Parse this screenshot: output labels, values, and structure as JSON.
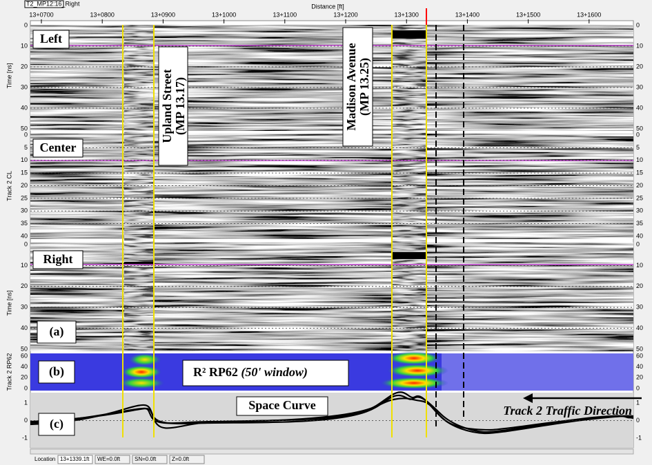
{
  "header": {
    "file": "T2_MP12:16_Right",
    "axis_title": "Distance [ft]",
    "ticks": [
      "13+0700",
      "13+0800",
      "13+0900",
      "13+1000",
      "13+1100",
      "13+1200",
      "13+1300",
      "13+1400",
      "13+1500",
      "13+1600"
    ]
  },
  "panels": [
    {
      "label": "Left",
      "axis_title": "Time [ns]",
      "ticks": [
        "0",
        "10",
        "20",
        "30",
        "40",
        "50"
      ]
    },
    {
      "label": "Center",
      "axis_title": "Track 2 CL",
      "ticks": [
        "0",
        "5",
        "10",
        "15",
        "20",
        "25",
        "30",
        "35",
        "40"
      ]
    },
    {
      "label": "Right",
      "axis_title": "Time [ns]",
      "ticks": [
        "0",
        "10",
        "20",
        "30",
        "40",
        "50"
      ],
      "tag": "(a)"
    }
  ],
  "r2_panel": {
    "axis_title": "Track 2 RP62",
    "ticks": [
      "60",
      "40",
      "20",
      "0"
    ],
    "label": "R² RP62",
    "label_italic": "(50' window)",
    "tag": "(b)"
  },
  "curve_panel": {
    "ticks": [
      "1",
      "0",
      "-1"
    ],
    "label": "Space Curve",
    "direction": "Track 2 Traffic Direction",
    "tag": "(c)"
  },
  "annotations": [
    {
      "line1": "Upland Street",
      "line2": "(MP 13.17)"
    },
    {
      "line1": "Madison Avenue",
      "line2": "(MP 13.25)"
    }
  ],
  "status_bar": {
    "location_label": "Location",
    "location": "13+1339.1ft",
    "we": "WE=0.0ft",
    "sn": "SN=0.0ft",
    "z": "Z=0.0ft"
  }
}
